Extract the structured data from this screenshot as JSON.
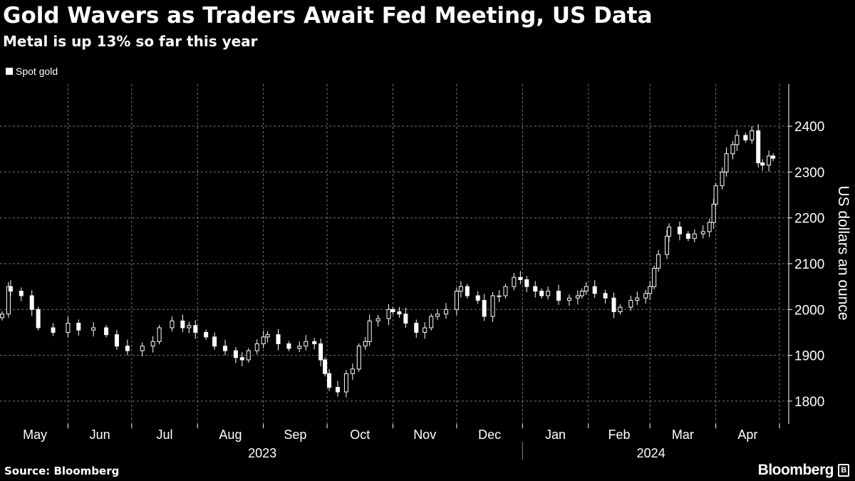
{
  "header": {
    "title": "Gold Wavers as Traders Await Fed Meeting, US Data",
    "subtitle": "Metal is up 13% so far this year"
  },
  "footer": {
    "source": "Source: Bloomberg",
    "logo": "Bloomberg",
    "logo_mark": "B"
  },
  "colors": {
    "background": "#000000",
    "candle": "#ffffff",
    "grid": "#7a7a7a"
  },
  "chart_data": {
    "type": "candlestick",
    "title": "Gold Wavers as Traders Await Fed Meeting, US Data",
    "subtitle": "Metal is up 13% so far this year",
    "legend": [
      {
        "name": "Spot gold",
        "color": "#ffffff"
      }
    ],
    "legend_position": "top-left",
    "ylabel": "US dollars an ounce",
    "y_axis_side": "right",
    "ylim": [
      1750,
      2492
    ],
    "yticks": [
      1800,
      1900,
      2000,
      2100,
      2200,
      2300,
      2400
    ],
    "x_unit": "days since 2023-05-01",
    "xlim": [
      -1,
      368
    ],
    "months": [
      {
        "label": "May",
        "start": 0,
        "end": 31
      },
      {
        "label": "Jun",
        "start": 31,
        "end": 61
      },
      {
        "label": "Jul",
        "start": 61,
        "end": 92
      },
      {
        "label": "Aug",
        "start": 92,
        "end": 123
      },
      {
        "label": "Sep",
        "start": 123,
        "end": 153
      },
      {
        "label": "Oct",
        "start": 153,
        "end": 184
      },
      {
        "label": "Nov",
        "start": 184,
        "end": 214
      },
      {
        "label": "Dec",
        "start": 214,
        "end": 245
      },
      {
        "label": "Jan",
        "start": 245,
        "end": 276
      },
      {
        "label": "Feb",
        "start": 276,
        "end": 305
      },
      {
        "label": "Mar",
        "start": 305,
        "end": 336
      },
      {
        "label": "Apr",
        "start": 336,
        "end": 366
      }
    ],
    "years": [
      {
        "label": "2023",
        "start": 0,
        "end": 245
      },
      {
        "label": "2024",
        "start": 245,
        "end": 366
      }
    ],
    "grid": true,
    "series": [
      {
        "name": "Spot gold",
        "points": [
          [
            0,
            1990
          ],
          [
            3,
            2050
          ],
          [
            4,
            2040
          ],
          [
            9,
            2030
          ],
          [
            14,
            2000
          ],
          [
            17,
            1960
          ],
          [
            24,
            1950
          ],
          [
            31,
            1970
          ],
          [
            36,
            1955
          ],
          [
            43,
            1960
          ],
          [
            49,
            1945
          ],
          [
            54,
            1920
          ],
          [
            59,
            1910
          ],
          [
            66,
            1920
          ],
          [
            71,
            1930
          ],
          [
            74,
            1960
          ],
          [
            80,
            1975
          ],
          [
            85,
            1960
          ],
          [
            88,
            1965
          ],
          [
            91,
            1950
          ],
          [
            96,
            1940
          ],
          [
            100,
            1920
          ],
          [
            105,
            1910
          ],
          [
            110,
            1895
          ],
          [
            113,
            1890
          ],
          [
            116,
            1910
          ],
          [
            120,
            1925
          ],
          [
            123,
            1940
          ],
          [
            125,
            1945
          ],
          [
            130,
            1925
          ],
          [
            135,
            1915
          ],
          [
            140,
            1920
          ],
          [
            143,
            1930
          ],
          [
            147,
            1925
          ],
          [
            150,
            1890
          ],
          [
            152,
            1860
          ],
          [
            154,
            1830
          ],
          [
            158,
            1820
          ],
          [
            162,
            1860
          ],
          [
            165,
            1870
          ],
          [
            168,
            1920
          ],
          [
            171,
            1930
          ],
          [
            173,
            1975
          ],
          [
            177,
            1980
          ],
          [
            182,
            2000
          ],
          [
            184,
            1995
          ],
          [
            187,
            1990
          ],
          [
            190,
            1970
          ],
          [
            195,
            1950
          ],
          [
            199,
            1960
          ],
          [
            202,
            1985
          ],
          [
            205,
            1990
          ],
          [
            209,
            2000
          ],
          [
            214,
            2040
          ],
          [
            216,
            2050
          ],
          [
            219,
            2030
          ],
          [
            224,
            2020
          ],
          [
            227,
            1985
          ],
          [
            231,
            2030
          ],
          [
            234,
            2030
          ],
          [
            237,
            2050
          ],
          [
            241,
            2070
          ],
          [
            244,
            2065
          ],
          [
            247,
            2050
          ],
          [
            251,
            2040
          ],
          [
            254,
            2030
          ],
          [
            257,
            2040
          ],
          [
            262,
            2020
          ],
          [
            267,
            2025
          ],
          [
            271,
            2030
          ],
          [
            273,
            2040
          ],
          [
            275,
            2050
          ],
          [
            279,
            2035
          ],
          [
            284,
            2025
          ],
          [
            288,
            1995
          ],
          [
            291,
            2005
          ],
          [
            296,
            2020
          ],
          [
            299,
            2025
          ],
          [
            303,
            2035
          ],
          [
            305,
            2050
          ],
          [
            307,
            2090
          ],
          [
            309,
            2120
          ],
          [
            313,
            2160
          ],
          [
            314,
            2180
          ],
          [
            319,
            2165
          ],
          [
            323,
            2155
          ],
          [
            326,
            2165
          ],
          [
            330,
            2170
          ],
          [
            333,
            2190
          ],
          [
            335,
            2230
          ],
          [
            336,
            2270
          ],
          [
            339,
            2300
          ],
          [
            341,
            2340
          ],
          [
            344,
            2360
          ],
          [
            346,
            2380
          ],
          [
            350,
            2370
          ],
          [
            353,
            2390
          ],
          [
            356,
            2320
          ],
          [
            358,
            2315
          ],
          [
            361,
            2335
          ],
          [
            363,
            2330
          ]
        ]
      }
    ]
  }
}
